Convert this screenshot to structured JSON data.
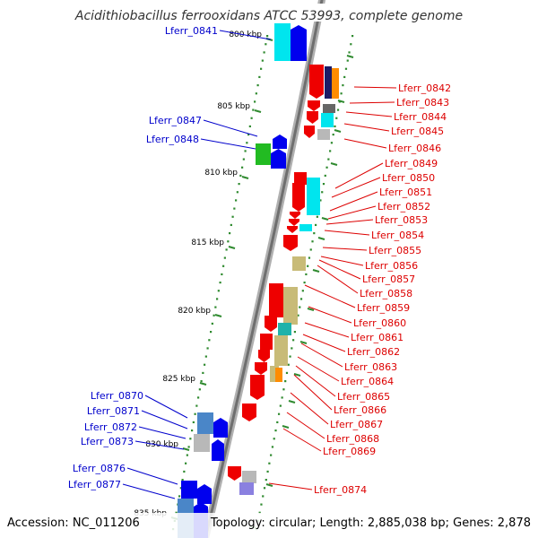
{
  "title": "Acidithiobacillus ferrooxidans ATCC 53993, complete genome",
  "accession_text": "Accession: NC_011206",
  "topology_text": "Topology: circular; Length: 2,885,038 bp; Genes: 2,878",
  "colors": {
    "forward_label": "#0000cc",
    "reverse_label": "#dd0000",
    "backbone": "#9a9a9a",
    "tick": "#2f8a2f"
  },
  "kbp_labels": [
    "800 kbp",
    "805 kbp",
    "810 kbp",
    "815 kbp",
    "820 kbp",
    "825 kbp",
    "830 kbp",
    "835 kbp"
  ],
  "genes_forward": [
    "Lferr_0841",
    "Lferr_0847",
    "Lferr_0848",
    "Lferr_0870",
    "Lferr_0871",
    "Lferr_0872",
    "Lferr_0873",
    "Lferr_0876",
    "Lferr_0877"
  ],
  "genes_reverse": [
    "Lferr_0842",
    "Lferr_0843",
    "Lferr_0844",
    "Lferr_0845",
    "Lferr_0846",
    "Lferr_0849",
    "Lferr_0850",
    "Lferr_0851",
    "Lferr_0852",
    "Lferr_0853",
    "Lferr_0854",
    "Lferr_0855",
    "Lferr_0856",
    "Lferr_0857",
    "Lferr_0858",
    "Lferr_0859",
    "Lferr_0860",
    "Lferr_0861",
    "Lferr_0862",
    "Lferr_0863",
    "Lferr_0864",
    "Lferr_0865",
    "Lferr_0866",
    "Lferr_0867",
    "Lferr_0868",
    "Lferr_0869",
    "Lferr_0874"
  ]
}
